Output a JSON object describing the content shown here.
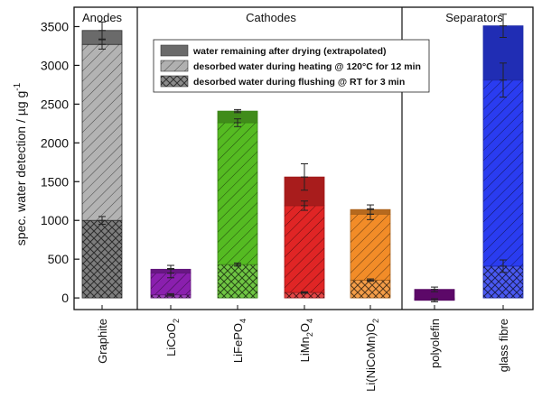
{
  "chart_data": {
    "type": "bar",
    "ylabel": "spec. water detection / µg g",
    "ylabel_sup": "-1",
    "ylim": [
      -150,
      3750
    ],
    "yticks": [
      "0",
      "500",
      "1000",
      "1500",
      "2000",
      "2500",
      "3000",
      "3500"
    ],
    "ytick_values": [
      0,
      500,
      1000,
      1500,
      2000,
      2500,
      3000,
      3500
    ],
    "groups": [
      {
        "name": "Anodes",
        "span": [
          0,
          0
        ]
      },
      {
        "name": "Cathodes",
        "span": [
          1,
          4
        ]
      },
      {
        "name": "Separators",
        "span": [
          5,
          6
        ]
      }
    ],
    "categories": [
      {
        "base": "Graphite",
        "sub": ""
      },
      {
        "base": "LiCoO",
        "sub": "2"
      },
      {
        "base": "LiFePO",
        "sub": "4"
      },
      {
        "base": "LiMn",
        "sub": "2",
        "tail": "O",
        "sub2": "4"
      },
      {
        "base": "Li(NiCoMn)O",
        "sub": "2"
      },
      {
        "base": "polyolefin",
        "sub": ""
      },
      {
        "base": "glass fibre",
        "sub": ""
      }
    ],
    "series": [
      {
        "name": "desorbed water during flushing @ RT for 3 min",
        "values": [
          1000,
          40,
          430,
          70,
          230,
          -30,
          410
        ],
        "errors": [
          50,
          15,
          20,
          10,
          15,
          20,
          80
        ]
      },
      {
        "name": "desorbed water during heating @ 120°C for 12 min",
        "values": [
          2270,
          280,
          1830,
          1120,
          850,
          0,
          2400
        ],
        "errors": [
          60,
          60,
          50,
          60,
          70,
          0,
          220
        ]
      },
      {
        "name": "water remaining after drying (extrapolated)",
        "values": [
          180,
          50,
          150,
          370,
          60,
          140,
          700
        ],
        "errors": [
          110,
          50,
          20,
          170,
          60,
          30,
          150
        ]
      }
    ],
    "colors": [
      "#5e5e5e",
      "#8a1fae",
      "#55bb22",
      "#e02525",
      "#f28c28",
      "#7a0a8a",
      "#2a3cf0"
    ],
    "legend_position": "top"
  }
}
